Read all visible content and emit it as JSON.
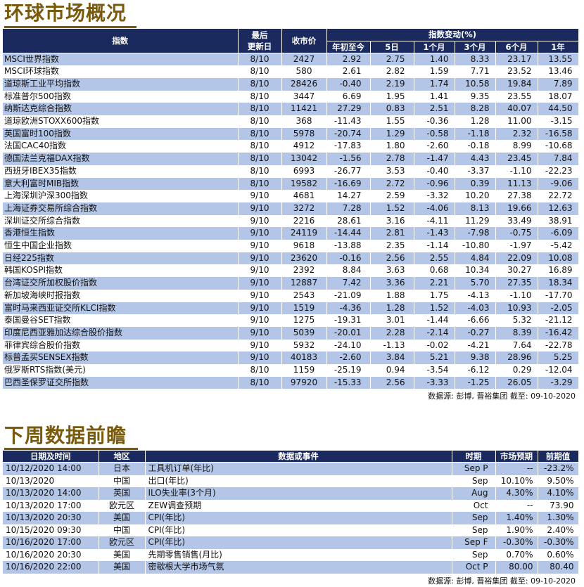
{
  "market": {
    "title": "环球市场概况",
    "headers": {
      "index": "指数",
      "updated": "最后\n更新日",
      "close": "收市价",
      "change_group": "指数变动(%)",
      "ytd": "年初至今",
      "d5": "5日",
      "m1": "1个月",
      "m3": "3个月",
      "m6": "6个月",
      "y1": "1年"
    },
    "rows": [
      [
        "MSCI世界指数",
        "8/10",
        "2427",
        "2.92",
        "2.75",
        "1.40",
        "8.33",
        "23.17",
        "13.55"
      ],
      [
        "MSCI环球指数",
        "8/10",
        "580",
        "2.61",
        "2.82",
        "1.59",
        "7.71",
        "23.52",
        "13.46"
      ],
      [
        "道琼斯工业平均指数",
        "8/10",
        "28426",
        "-0.40",
        "2.19",
        "1.74",
        "10.58",
        "19.84",
        "7.89"
      ],
      [
        "标准普尔500指数",
        "8/10",
        "3447",
        "6.69",
        "1.95",
        "1.41",
        "9.35",
        "23.55",
        "18.07"
      ],
      [
        "纳斯达克综合指数",
        "8/10",
        "11421",
        "27.29",
        "0.83",
        "2.51",
        "8.28",
        "40.07",
        "44.50"
      ],
      [
        "道琼欧洲STOXX600指数",
        "8/10",
        "368",
        "-11.43",
        "1.55",
        "-0.36",
        "1.28",
        "11.00",
        "-3.15"
      ],
      [
        "英国富时100指数",
        "8/10",
        "5978",
        "-20.74",
        "1.29",
        "-0.58",
        "-1.18",
        "2.32",
        "-16.58"
      ],
      [
        "法国CAC40指数",
        "8/10",
        "4912",
        "-17.83",
        "1.80",
        "-2.60",
        "-0.18",
        "8.99",
        "-10.68"
      ],
      [
        "德国法兰克福DAX指数",
        "8/10",
        "13042",
        "-1.56",
        "2.78",
        "-1.47",
        "4.43",
        "23.45",
        "7.84"
      ],
      [
        "西班牙IBEX35指数",
        "8/10",
        "6993",
        "-26.77",
        "3.53",
        "-0.40",
        "-3.37",
        "-1.10",
        "-22.23"
      ],
      [
        "意大利富时MIB指数",
        "8/10",
        "19582",
        "-16.69",
        "2.72",
        "-0.96",
        "0.39",
        "11.13",
        "-9.06"
      ],
      [
        "上海深圳沪深300指数",
        "9/10",
        "4681",
        "14.27",
        "2.59",
        "-3.32",
        "10.20",
        "27.38",
        "22.72"
      ],
      [
        "上海证券交易所综合指数",
        "9/10",
        "3272",
        "7.28",
        "1.52",
        "-4.06",
        "8.13",
        "19.66",
        "12.63"
      ],
      [
        "深圳证交所综合指数",
        "9/10",
        "2216",
        "28.61",
        "3.16",
        "-4.11",
        "11.29",
        "33.49",
        "38.91"
      ],
      [
        "香港恒生指数",
        "9/10",
        "24119",
        "-14.44",
        "2.81",
        "-1.43",
        "-7.98",
        "-0.75",
        "-6.09"
      ],
      [
        "恒生中国企业指数",
        "9/10",
        "9618",
        "-13.88",
        "2.35",
        "-1.14",
        "-10.80",
        "-1.97",
        "-5.42"
      ],
      [
        "日经225指数",
        "9/10",
        "23620",
        "-0.16",
        "2.56",
        "2.55",
        "4.84",
        "22.09",
        "10.08"
      ],
      [
        "韩国KOSPI指数",
        "9/10",
        "2392",
        "8.84",
        "3.63",
        "0.68",
        "10.34",
        "30.27",
        "16.89"
      ],
      [
        "台湾证交所加权股价指数",
        "9/10",
        "12887",
        "7.42",
        "3.36",
        "2.21",
        "5.70",
        "27.35",
        "18.34"
      ],
      [
        "新加坡海峡时报指数",
        "9/10",
        "2543",
        "-21.09",
        "1.88",
        "1.75",
        "-4.13",
        "-1.10",
        "-17.70"
      ],
      [
        "富时马来西亚证交所KLCI指数",
        "9/10",
        "1519",
        "-4.36",
        "1.28",
        "1.52",
        "-4.03",
        "10.93",
        "-2.05"
      ],
      [
        "泰国曼谷SET指数",
        "9/10",
        "1275",
        "-19.31",
        "3.01",
        "-1.44",
        "-6.66",
        "5.32",
        "-21.12"
      ],
      [
        "印度尼西亚雅加达综合股价指数",
        "9/10",
        "5039",
        "-20.01",
        "2.28",
        "-2.14",
        "-0.27",
        "8.39",
        "-16.42"
      ],
      [
        "菲律宾综合股价指数",
        "9/10",
        "5932",
        "-24.10",
        "-1.13",
        "-0.02",
        "-4.21",
        "7.64",
        "-22.78"
      ],
      [
        "标普孟买SENSEX指数",
        "9/10",
        "40183",
        "-2.60",
        "3.84",
        "5.21",
        "9.38",
        "28.96",
        "5.25"
      ],
      [
        "俄罗斯RTS指数(美元)",
        "8/10",
        "1159",
        "-25.19",
        "0.94",
        "-3.54",
        "-6.12",
        "0.29",
        "-12.04"
      ],
      [
        "巴西圣保罗证交所指数",
        "8/10",
        "97920",
        "-15.33",
        "2.56",
        "-3.33",
        "-1.25",
        "26.05",
        "-3.29"
      ]
    ],
    "source": "数据源: 彭博, 晋裕集团 截至: 09-10-2020"
  },
  "events": {
    "title": "下周数据前瞻",
    "headers": {
      "datetime": "日期及时间",
      "region": "地区",
      "event": "数据或事件",
      "period": "时期",
      "forecast": "市场预期",
      "previous": "前期值"
    },
    "rows": [
      [
        "10/12/2020 14:00",
        "日本",
        "工具机订单(年比)",
        "Sep P",
        "--",
        "-23.2%"
      ],
      [
        "10/13/2020",
        "中国",
        "出口(年比)",
        "Sep",
        "10.10%",
        "9.50%"
      ],
      [
        "10/13/2020 14:00",
        "英国",
        "ILO失业率(3个月)",
        "Aug",
        "4.30%",
        "4.10%"
      ],
      [
        "10/13/2020 17:00",
        "欧元区",
        "ZEW调查预期",
        "Oct",
        "--",
        "73.90"
      ],
      [
        "10/13/2020 20:30",
        "美国",
        "CPI(年比)",
        "Sep",
        "1.40%",
        "1.30%"
      ],
      [
        "10/15/2020 09:30",
        "中国",
        "CPI(年比)",
        "Sep",
        "1.90%",
        "2.40%"
      ],
      [
        "10/16/2020 17:00",
        "欧元区",
        "CPI(年比)",
        "Sep F",
        "-0.30%",
        "-0.30%"
      ],
      [
        "10/16/2020 20:30",
        "美国",
        "先期零售销售(月比)",
        "Sep",
        "0.70%",
        "0.60%"
      ],
      [
        "10/16/2020 22:00",
        "美国",
        "密歇根大学市场气氛",
        "Oct P",
        "80.00",
        "80.40"
      ]
    ],
    "source": "数据源: 彭博, 晋裕集团 截至: 09-10-2020"
  }
}
